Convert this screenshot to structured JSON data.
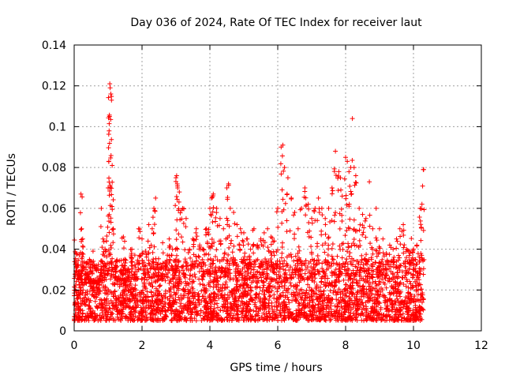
{
  "chart_data": {
    "type": "scatter",
    "title": "Day 036 of 2024, Rate Of TEC Index for receiver laut",
    "xlabel": "GPS time / hours",
    "ylabel": "ROTI / TECUs",
    "xlim": [
      0,
      12
    ],
    "ylim": [
      0,
      0.14
    ],
    "x_ticks": [
      0,
      2,
      4,
      6,
      8,
      10,
      12
    ],
    "x_tick_labels": [
      "0",
      "2",
      "4",
      "6",
      "8",
      "10",
      "12"
    ],
    "y_ticks": [
      0,
      0.02,
      0.04,
      0.06,
      0.08,
      0.1,
      0.12,
      0.14
    ],
    "y_tick_labels": [
      "0",
      "0.02",
      "0.04",
      "0.06",
      "0.08",
      "0.1",
      "0.12",
      "0.14"
    ],
    "grid": true,
    "marker": "+",
    "color": "#ff0000",
    "series": [
      {
        "name": "ROTI",
        "x": [
          0.05,
          0.1,
          0.15,
          0.2,
          0.22,
          0.25,
          0.3,
          0.35,
          0.4,
          0.45,
          0.5,
          0.55,
          0.6,
          0.65,
          0.7,
          0.75,
          0.8,
          0.85,
          0.9,
          0.95,
          1.0,
          1.02,
          1.04,
          1.05,
          1.06,
          1.08,
          1.1,
          1.12,
          1.15,
          1.2,
          1.3,
          1.4,
          1.45,
          1.5,
          1.6,
          1.7,
          1.8,
          1.9,
          2.0,
          2.1,
          2.2,
          2.3,
          2.35,
          2.4,
          2.5,
          2.6,
          2.7,
          2.8,
          2.9,
          3.0,
          3.02,
          3.05,
          3.1,
          3.2,
          3.3,
          3.4,
          3.5,
          3.6,
          3.7,
          3.8,
          3.9,
          4.0,
          4.05,
          4.1,
          4.2,
          4.3,
          4.4,
          4.5,
          4.55,
          4.6,
          4.7,
          4.8,
          4.9,
          5.0,
          5.1,
          5.2,
          5.3,
          5.4,
          5.5,
          5.6,
          5.7,
          5.8,
          5.9,
          6.0,
          6.1,
          6.15,
          6.2,
          6.3,
          6.4,
          6.5,
          6.6,
          6.7,
          6.8,
          6.9,
          7.0,
          7.1,
          7.2,
          7.3,
          7.4,
          7.5,
          7.6,
          7.7,
          7.8,
          7.85,
          7.9,
          8.0,
          8.05,
          8.1,
          8.15,
          8.2,
          8.25,
          8.3,
          8.4,
          8.5,
          8.6,
          8.7,
          8.8,
          8.9,
          9.0,
          9.1,
          9.2,
          9.3,
          9.4,
          9.5,
          9.6,
          9.7,
          9.8,
          9.9,
          10.0,
          10.1,
          10.2,
          10.25,
          10.3
        ],
        "y": [
          0.038,
          0.032,
          0.029,
          0.067,
          0.05,
          0.045,
          0.025,
          0.03,
          0.028,
          0.035,
          0.022,
          0.02,
          0.024,
          0.032,
          0.018,
          0.025,
          0.06,
          0.045,
          0.033,
          0.044,
          0.07,
          0.083,
          0.105,
          0.121,
          0.119,
          0.116,
          0.113,
          0.081,
          0.05,
          0.03,
          0.025,
          0.032,
          0.046,
          0.024,
          0.03,
          0.04,
          0.026,
          0.05,
          0.045,
          0.039,
          0.052,
          0.05,
          0.06,
          0.065,
          0.03,
          0.028,
          0.032,
          0.045,
          0.04,
          0.075,
          0.076,
          0.07,
          0.068,
          0.06,
          0.055,
          0.04,
          0.045,
          0.05,
          0.042,
          0.04,
          0.05,
          0.06,
          0.065,
          0.067,
          0.06,
          0.055,
          0.05,
          0.07,
          0.072,
          0.06,
          0.058,
          0.052,
          0.05,
          0.048,
          0.045,
          0.04,
          0.05,
          0.042,
          0.045,
          0.048,
          0.05,
          0.046,
          0.044,
          0.06,
          0.09,
          0.091,
          0.08,
          0.075,
          0.065,
          0.058,
          0.05,
          0.06,
          0.07,
          0.062,
          0.055,
          0.06,
          0.065,
          0.06,
          0.055,
          0.06,
          0.07,
          0.088,
          0.078,
          0.075,
          0.066,
          0.085,
          0.083,
          0.078,
          0.08,
          0.104,
          0.08,
          0.076,
          0.06,
          0.057,
          0.055,
          0.073,
          0.05,
          0.06,
          0.05,
          0.045,
          0.038,
          0.042,
          0.04,
          0.045,
          0.05,
          0.052,
          0.04,
          0.038,
          0.04,
          0.042,
          0.06,
          0.062,
          0.079
        ]
      }
    ],
    "baseline_band": {
      "description": "dense cluster of points",
      "x_range": [
        0,
        10.3
      ],
      "y_range": [
        0.005,
        0.035
      ]
    }
  }
}
